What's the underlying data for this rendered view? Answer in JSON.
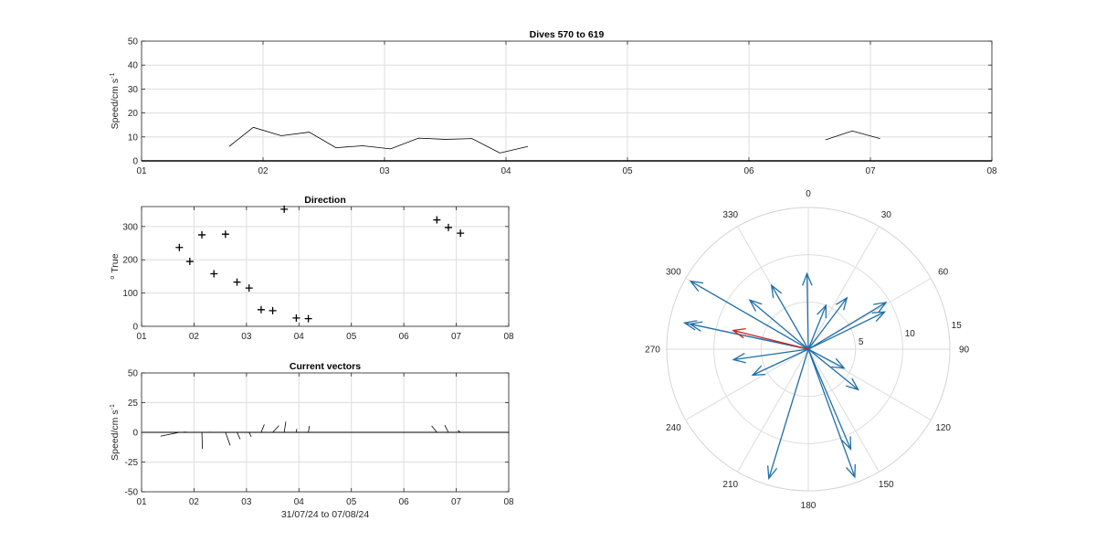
{
  "figure_title": "Dives 570 to 619",
  "chart_data": [
    {
      "id": "speed",
      "type": "line",
      "title": "Dives 570 to 619",
      "xlabel": "",
      "ylabel": "Speed/cm s",
      "ylabel_sup": "-1",
      "xlim": [
        1,
        8
      ],
      "ylim": [
        0,
        50
      ],
      "xticks": [
        1,
        2,
        3,
        4,
        5,
        6,
        7,
        8
      ],
      "xtick_labels": [
        "01",
        "02",
        "03",
        "04",
        "05",
        "06",
        "07",
        "08"
      ],
      "yticks": [
        0,
        10,
        20,
        30,
        40,
        50
      ],
      "ytick_labels": [
        "0",
        "10",
        "20",
        "30",
        "40",
        "50"
      ],
      "grid": true,
      "color": "#000000",
      "segments": [
        [
          [
            1.72,
            6
          ],
          [
            1.92,
            14
          ],
          [
            2.15,
            10.5
          ],
          [
            2.38,
            12
          ],
          [
            2.6,
            5.5
          ],
          [
            2.82,
            6.3
          ],
          [
            3.05,
            5
          ],
          [
            3.28,
            9.5
          ],
          [
            3.5,
            9
          ],
          [
            3.72,
            9.3
          ],
          [
            3.95,
            3.3
          ],
          [
            4.18,
            6
          ]
        ],
        [
          [
            6.63,
            8.8
          ],
          [
            6.85,
            12.5
          ],
          [
            7.08,
            9.3
          ]
        ]
      ]
    },
    {
      "id": "direction",
      "type": "scatter",
      "title": "Direction",
      "xlabel": "",
      "ylabel": "True",
      "ylabel_sup": "o",
      "xlim": [
        1,
        8
      ],
      "ylim": [
        0,
        360
      ],
      "xticks": [
        1,
        2,
        3,
        4,
        5,
        6,
        7,
        8
      ],
      "xtick_labels": [
        "01",
        "02",
        "03",
        "04",
        "05",
        "06",
        "07",
        "08"
      ],
      "yticks": [
        0,
        100,
        200,
        300
      ],
      "ytick_labels": [
        "0",
        "100",
        "200",
        "300"
      ],
      "grid": true,
      "marker": "+",
      "points": [
        [
          1.72,
          237
        ],
        [
          1.92,
          195
        ],
        [
          2.15,
          275
        ],
        [
          2.38,
          158
        ],
        [
          2.6,
          277
        ],
        [
          2.82,
          133
        ],
        [
          3.05,
          115
        ],
        [
          3.28,
          50
        ],
        [
          3.5,
          47
        ],
        [
          3.72,
          352
        ],
        [
          3.95,
          25
        ],
        [
          4.18,
          23
        ],
        [
          6.63,
          320
        ],
        [
          6.85,
          297
        ],
        [
          7.08,
          280
        ]
      ]
    },
    {
      "id": "vectors",
      "type": "line",
      "title": "Current vectors",
      "xlabel": "31/07/24 to 07/08/24",
      "ylabel": "Speed/cm s",
      "ylabel_sup": "-1",
      "xlim": [
        1,
        8
      ],
      "ylim": [
        -50,
        50
      ],
      "xticks": [
        1,
        2,
        3,
        4,
        5,
        6,
        7,
        8
      ],
      "xtick_labels": [
        "01",
        "02",
        "03",
        "04",
        "05",
        "06",
        "07",
        "08"
      ],
      "yticks": [
        -50,
        -25,
        0,
        25,
        50
      ],
      "ytick_labels": [
        "-50",
        "-25",
        "0",
        "25",
        "50"
      ],
      "grid": true,
      "color": "#000000",
      "vectors": [
        [
          1.72,
          -3.6,
          -3.3
        ],
        [
          1.92,
          -1.2,
          0.3
        ],
        [
          2.15,
          0.1,
          -14
        ],
        [
          2.38,
          -0.8,
          0.2
        ],
        [
          2.6,
          0.9,
          -11
        ],
        [
          2.82,
          0.6,
          -5.7
        ],
        [
          3.05,
          0.4,
          -3.7
        ],
        [
          3.28,
          0.6,
          6.6
        ],
        [
          3.5,
          1.2,
          5.7
        ],
        [
          3.72,
          0.3,
          9
        ],
        [
          3.95,
          0.1,
          2.9
        ],
        [
          4.18,
          0.2,
          5.3
        ],
        [
          6.63,
          -1.0,
          5.5
        ],
        [
          6.85,
          -0.7,
          6.0
        ],
        [
          7.08,
          -0.5,
          1.6
        ]
      ]
    },
    {
      "id": "polar",
      "type": "polar",
      "rlim": [
        0,
        15
      ],
      "rticks": [
        5,
        10,
        15
      ],
      "rtick_labels": [
        "5",
        "10",
        "15"
      ],
      "theta_ticks": [
        0,
        30,
        60,
        90,
        120,
        150,
        180,
        210,
        240,
        270,
        300,
        330
      ],
      "theta_labels": [
        "0",
        "30",
        "60",
        "90",
        "120",
        "150",
        "180",
        "210",
        "240",
        "270",
        "300",
        "330"
      ],
      "theta_zero": "top",
      "theta_direction": "clockwise",
      "arrow_color": "#1f6fa8",
      "mean_color": "#cc1f1f",
      "arrows": [
        [
          14.4,
          300
        ],
        [
          13.4,
          282
        ],
        [
          12.8,
          282
        ],
        [
          7.8,
          330
        ],
        [
          8.1,
          310
        ],
        [
          8.0,
          262
        ],
        [
          6.5,
          245
        ],
        [
          8.0,
          359
        ],
        [
          9.6,
          59
        ],
        [
          9.0,
          64
        ],
        [
          5.0,
          22
        ],
        [
          6.8,
          37
        ],
        [
          4.3,
          118
        ],
        [
          6.8,
          129
        ],
        [
          11.5,
          157
        ],
        [
          14.4,
          160
        ],
        [
          14.3,
          197
        ]
      ],
      "mean_arrow": [
        8.2,
        284
      ]
    }
  ]
}
